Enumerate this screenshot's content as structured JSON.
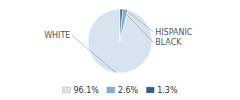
{
  "chart_data": {
    "type": "pie",
    "categories": [
      "WHITE",
      "HISPANIC",
      "BLACK"
    ],
    "values": [
      96.1,
      2.6,
      1.3
    ],
    "value_labels": [
      "96.1%",
      "2.6%",
      "1.3%"
    ],
    "colors": [
      "#d6e4f0",
      "#7bafd4",
      "#2d5f8a"
    ],
    "legend": "bottom"
  }
}
